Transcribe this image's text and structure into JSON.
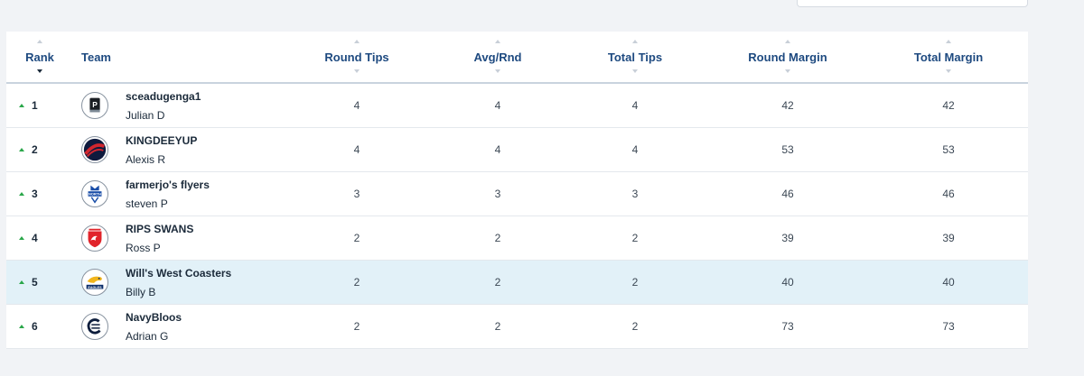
{
  "header": {
    "rank": "Rank",
    "team": "Team",
    "round_tips": "Round Tips",
    "avg_rnd": "Avg/Rnd",
    "total_tips": "Total Tips",
    "round_margin": "Round Margin",
    "total_margin": "Total Margin"
  },
  "rows": [
    {
      "rank": "1",
      "team": "sceadugenga1",
      "owner": "Julian D",
      "logo": "port-adelaide-icon",
      "round_tips": "4",
      "avg_rnd": "4",
      "total_tips": "4",
      "round_margin": "42",
      "total_margin": "42"
    },
    {
      "rank": "2",
      "team": "KINGDEEYUP",
      "owner": "Alexis R",
      "logo": "melbourne-icon",
      "round_tips": "4",
      "avg_rnd": "4",
      "total_tips": "4",
      "round_margin": "53",
      "total_margin": "53"
    },
    {
      "rank": "3",
      "team": "farmerjo's flyers",
      "owner": "steven P",
      "logo": "north-melbourne-icon",
      "round_tips": "3",
      "avg_rnd": "3",
      "total_tips": "3",
      "round_margin": "46",
      "total_margin": "46"
    },
    {
      "rank": "4",
      "team": "RIPS SWANS",
      "owner": "Ross P",
      "logo": "sydney-swans-icon",
      "round_tips": "2",
      "avg_rnd": "2",
      "total_tips": "2",
      "round_margin": "39",
      "total_margin": "39"
    },
    {
      "rank": "5",
      "team": "Will's West Coasters",
      "owner": "Billy B",
      "logo": "west-coast-eagles-icon",
      "round_tips": "2",
      "avg_rnd": "2",
      "total_tips": "2",
      "round_margin": "40",
      "total_margin": "40",
      "highlighted": true
    },
    {
      "rank": "6",
      "team": "NavyBloos",
      "owner": "Adrian G",
      "logo": "carlton-icon",
      "round_tips": "2",
      "avg_rnd": "2",
      "total_tips": "2",
      "round_margin": "73",
      "total_margin": "73"
    }
  ],
  "logo_marks": {
    "north": "NORTH",
    "eagles": "EAGLES"
  },
  "colors": {
    "header_text": "#1e4a80",
    "rank_up": "#2aa74a",
    "highlight_row": "#e2f1f8"
  }
}
